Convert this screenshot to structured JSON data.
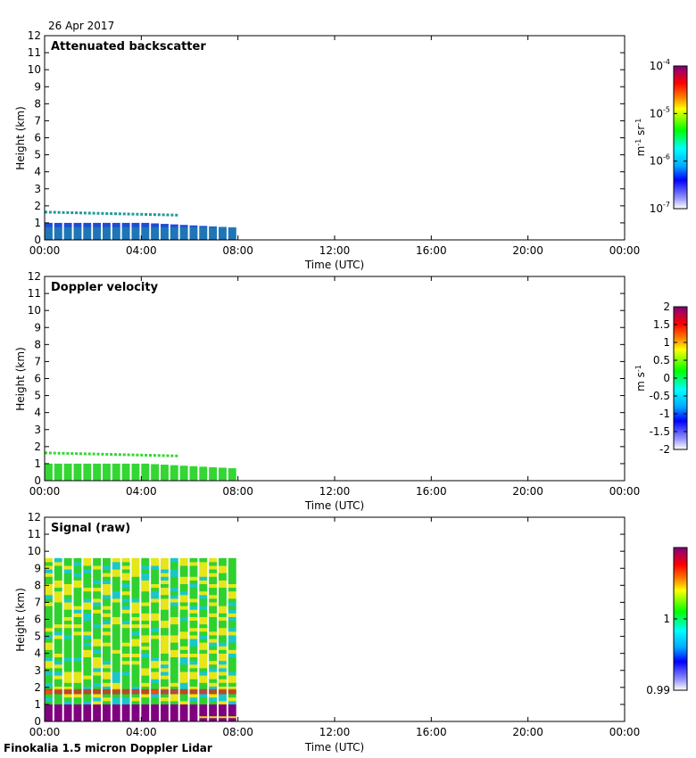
{
  "date_label": "26 Apr 2017",
  "footer": "Finokalia 1.5 micron Doppler Lidar",
  "colors": {
    "backscatter_shallow": "#1f9a9a",
    "backscatter_deep": "#1f4bd8",
    "velocity": "#33d633",
    "signal_green": "#2fd12f",
    "signal_yellow": "#e6e619",
    "signal_red": "#e0201c",
    "signal_purple": "#800080"
  },
  "chart_data": [
    {
      "type": "heatmap",
      "title": "Attenuated backscatter",
      "xlabel": "Time (UTC)",
      "ylabel": "Height (km)",
      "xticks": [
        "00:00",
        "04:00",
        "08:00",
        "12:00",
        "16:00",
        "20:00",
        "00:00"
      ],
      "yticks": [
        "0",
        "1",
        "2",
        "3",
        "4",
        "5",
        "6",
        "7",
        "8",
        "9",
        "10",
        "11",
        "12"
      ],
      "xlim": [
        0,
        24
      ],
      "ylim": [
        0,
        12
      ],
      "data_time_range": [
        0,
        8
      ],
      "layers": [
        {
          "t0": 0,
          "t1": 8,
          "z0": 0,
          "z1": 1.0
        },
        {
          "t0": 0,
          "t1": 5.5,
          "z0": 1.5,
          "z1": 1.75
        }
      ],
      "colorbar": {
        "label_base": "m",
        "label_exp1": "-1",
        "label_mid": " sr",
        "label_exp2": "-1",
        "scale": "log",
        "range": [
          1e-07,
          0.0001
        ],
        "ticks": [
          {
            "base": "10",
            "exp": "-4",
            "value": -4
          },
          {
            "base": "10",
            "exp": "-5",
            "value": -5
          },
          {
            "base": "10",
            "exp": "-6",
            "value": -6
          },
          {
            "base": "10",
            "exp": "-7",
            "value": -7
          }
        ]
      }
    },
    {
      "type": "heatmap",
      "title": "Doppler velocity",
      "xlabel": "Time (UTC)",
      "ylabel": "Height (km)",
      "xticks": [
        "00:00",
        "04:00",
        "08:00",
        "12:00",
        "16:00",
        "20:00",
        "00:00"
      ],
      "yticks": [
        "0",
        "1",
        "2",
        "3",
        "4",
        "5",
        "6",
        "7",
        "8",
        "9",
        "10",
        "11",
        "12"
      ],
      "xlim": [
        0,
        24
      ],
      "ylim": [
        0,
        12
      ],
      "data_time_range": [
        0,
        8
      ],
      "layers": [
        {
          "t0": 0,
          "t1": 8,
          "z0": 0,
          "z1": 1.0
        },
        {
          "t0": 0,
          "t1": 5.5,
          "z0": 1.5,
          "z1": 1.75
        }
      ],
      "colorbar": {
        "label_base": "m s",
        "label_exp1": "-1",
        "label_mid": "",
        "label_exp2": "",
        "scale": "linear",
        "range": [
          -2,
          2
        ],
        "ticks": [
          {
            "base": "2",
            "exp": "",
            "value": 2
          },
          {
            "base": "1.5",
            "exp": "",
            "value": 1.5
          },
          {
            "base": "1",
            "exp": "",
            "value": 1
          },
          {
            "base": "0.5",
            "exp": "",
            "value": 0.5
          },
          {
            "base": "0",
            "exp": "",
            "value": 0
          },
          {
            "base": "-0.5",
            "exp": "",
            "value": -0.5
          },
          {
            "base": "-1",
            "exp": "",
            "value": -1
          },
          {
            "base": "-1.5",
            "exp": "",
            "value": -1.5
          },
          {
            "base": "-2",
            "exp": "",
            "value": -2
          }
        ]
      }
    },
    {
      "type": "heatmap",
      "title": "Signal (raw)",
      "xlabel": "Time (UTC)",
      "ylabel": "Height (km)",
      "xticks": [
        "00:00",
        "04:00",
        "08:00",
        "12:00",
        "16:00",
        "20:00",
        "00:00"
      ],
      "yticks": [
        "0",
        "1",
        "2",
        "3",
        "4",
        "5",
        "6",
        "7",
        "8",
        "9",
        "10",
        "11",
        "12"
      ],
      "xlim": [
        0,
        24
      ],
      "ylim": [
        0,
        12
      ],
      "data_time_range": [
        0,
        8
      ],
      "data_height_range": [
        0,
        9.6
      ],
      "colorbar": {
        "label_base": "",
        "label_exp1": "",
        "label_mid": "",
        "label_exp2": "",
        "scale": "linear",
        "range": [
          0.99,
          1.01
        ],
        "ticks": [
          {
            "base": "1",
            "exp": "",
            "value": 1
          },
          {
            "base": "0.99",
            "exp": "",
            "value": 0.99
          }
        ]
      }
    }
  ]
}
